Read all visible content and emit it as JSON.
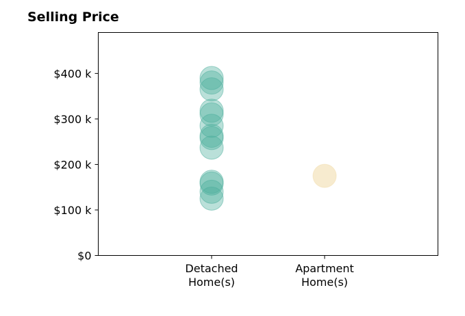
{
  "chart_data": {
    "type": "scatter",
    "title": "Selling Price",
    "xlabel": "",
    "ylabel": "",
    "categories": [
      "Detached\nHome(s)",
      "Apartment\nHome(s)"
    ],
    "yticks": [
      "$0",
      "$100 k",
      "$200 k",
      "$300 k",
      "$400 k"
    ],
    "ytick_values": [
      0,
      100,
      200,
      300,
      400
    ],
    "ylim": [
      0,
      490
    ],
    "grid": false,
    "series": [
      {
        "category_index": 0,
        "color": "#4aae9b",
        "values": [
          390,
          380,
          365,
          318,
          310,
          285,
          263,
          258,
          237,
          162,
          158,
          140,
          125
        ]
      },
      {
        "category_index": 1,
        "color": "#f1dba8",
        "values": [
          175
        ]
      }
    ]
  }
}
